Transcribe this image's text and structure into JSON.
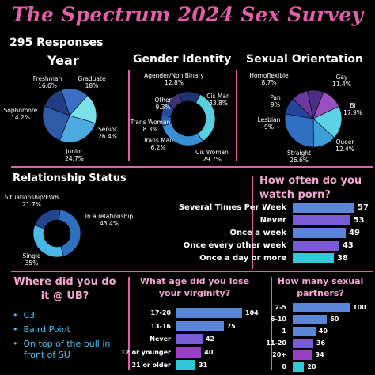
{
  "title": "The Spectrum 2024 Sex Survey",
  "responses": "295 Responses",
  "colors": {
    "accent_pink": "#e05fa9",
    "heading_pink": "#f2a7cf",
    "background": "#000000",
    "bar_blue": "#5b85d8",
    "bar_purple": "#7a5bd6",
    "bar_violet": "#9a3fc3",
    "bar_cyan": "#30c9d8"
  },
  "chart_data": [
    {
      "type": "pie",
      "title": "Year",
      "series": [
        {
          "label": "Freshman",
          "display": "Freshman\n16.6%",
          "value": 16.6,
          "color": "#3b6fc4"
        },
        {
          "label": "Graduate",
          "display": "Graduate\n18%",
          "value": 18,
          "color": "#7be0e8"
        },
        {
          "label": "Senior",
          "display": "Senior\n26.4%",
          "value": 26.4,
          "color": "#4da9e0"
        },
        {
          "label": "Junior",
          "display": "Junior\n24.7%",
          "value": 24.7,
          "color": "#2e5aa8"
        },
        {
          "label": "Sophomore",
          "display": "Sophomore\n14.2%",
          "value": 14.2,
          "color": "#233e82"
        }
      ]
    },
    {
      "type": "pie",
      "title": "Gender Identity",
      "donut": true,
      "series": [
        {
          "label": "Agender/Non Binary",
          "display": "Agender/Non Binary\n12.8%",
          "value": 12.8,
          "color": "#1f3472"
        },
        {
          "label": "Cis Man",
          "display": "Cis Man\n33.8%",
          "value": 33.8,
          "color": "#58cfe0"
        },
        {
          "label": "Cis Woman",
          "display": "Cis Woman\n29.7%",
          "value": 29.7,
          "color": "#3a8fd4"
        },
        {
          "label": "Trans Man",
          "display": "Trans Man\n6.2%",
          "value": 6.2,
          "color": "#2b5db0"
        },
        {
          "label": "Trans Woman",
          "display": "Trans Woman\n8.3%",
          "value": 8.3,
          "color": "#294a9a"
        },
        {
          "label": "Other",
          "display": "Other\n9.3%",
          "value": 9.3,
          "color": "#3f3270"
        }
      ]
    },
    {
      "type": "pie",
      "title": "Sexual Orientation",
      "series": [
        {
          "label": "Homoflexible",
          "display": "Homoflexible\n8.7%",
          "value": 8.7,
          "color": "#4a2f84"
        },
        {
          "label": "Gay",
          "display": "Gay\n11.4%",
          "value": 11.4,
          "color": "#9a4fbf"
        },
        {
          "label": "Bi",
          "display": "Bi\n17.9%",
          "value": 17.9,
          "color": "#5ed0e6"
        },
        {
          "label": "Queer",
          "display": "Queer\n12.4%",
          "value": 12.4,
          "color": "#3e9fd8"
        },
        {
          "label": "Straight",
          "display": "Straight\n26.6%",
          "value": 26.6,
          "color": "#2f70c2"
        },
        {
          "label": "Lesbian",
          "display": "Lesbian\n9%",
          "value": 9,
          "color": "#24459a"
        },
        {
          "label": "Pan",
          "display": "Pan\n9%",
          "value": 9,
          "color": "#6a3a9e"
        }
      ]
    },
    {
      "type": "pie",
      "title": "Relationship Status",
      "donut": true,
      "series": [
        {
          "label": "Situationship/FWB",
          "display": "Situationship/FWB\n21.7%",
          "value": 21.7,
          "color": "#23468e"
        },
        {
          "label": "In a relationship",
          "display": "In a relationship\n43.4%",
          "value": 43.4,
          "color": "#2f6fc0"
        },
        {
          "label": "Single",
          "display": "Single\n35%",
          "value": 35,
          "color": "#49b8e6"
        }
      ]
    },
    {
      "type": "bar",
      "orientation": "horizontal",
      "title": "How often do you watch porn?",
      "categories": [
        "Several Times Per Week",
        "Never",
        "Once a week",
        "Once every other week",
        "Once a day or more"
      ],
      "values": [
        57,
        53,
        49,
        43,
        38
      ],
      "colors": [
        "#5b85d8",
        "#7a5bd6",
        "#5b85d8",
        "#7a5bd6",
        "#30c9d8"
      ]
    },
    {
      "type": "bar",
      "orientation": "horizontal",
      "title": "What age did you lose your virginity?",
      "categories": [
        "17-20",
        "13-16",
        "Never",
        "12 or younger",
        "21 or older"
      ],
      "values": [
        104,
        75,
        42,
        40,
        31
      ],
      "colors": [
        "#5b85d8",
        "#5b85d8",
        "#7a5bd6",
        "#9a3fc3",
        "#30c9d8"
      ]
    },
    {
      "type": "bar",
      "orientation": "horizontal",
      "title": "How many sexual partners?",
      "categories": [
        "2-5",
        "6-10",
        "1",
        "11-20",
        "20+",
        "0"
      ],
      "values": [
        100,
        60,
        40,
        36,
        34,
        20
      ],
      "colors": [
        "#5b85d8",
        "#5b85d8",
        "#5b85d8",
        "#7a5bd6",
        "#9a3fc3",
        "#30c9d8"
      ]
    }
  ],
  "where_at_ub": {
    "title": "Where did you do it @ UB?",
    "items": [
      "C3",
      "Baird Point",
      "On top of the bull in front of SU"
    ]
  }
}
